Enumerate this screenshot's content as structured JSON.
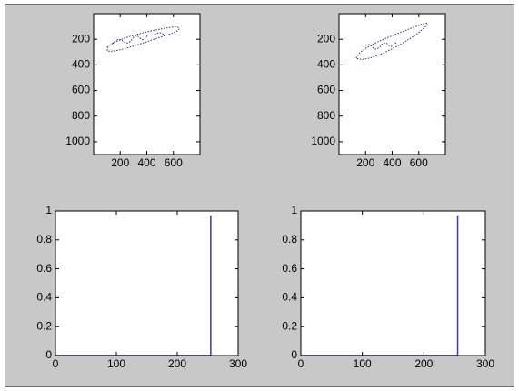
{
  "chart_data": [
    {
      "type": "image",
      "xlim": [
        0,
        800
      ],
      "ylim": [
        0,
        1100
      ],
      "y_reversed": true,
      "xticks": [
        200,
        400,
        600
      ],
      "yticks": [
        200,
        400,
        600,
        800,
        1000
      ]
    },
    {
      "type": "image",
      "xlim": [
        0,
        800
      ],
      "ylim": [
        0,
        1100
      ],
      "y_reversed": true,
      "xticks": [
        200,
        400,
        600
      ],
      "yticks": [
        200,
        400,
        600,
        800,
        1000
      ]
    },
    {
      "type": "line",
      "xlim": [
        0,
        300
      ],
      "ylim": [
        0,
        1
      ],
      "xticks": [
        0,
        100,
        200,
        300
      ],
      "yticks": [
        0,
        0.2,
        0.4,
        0.6,
        0.8,
        1
      ],
      "series": [
        {
          "color": "#3b3bb0",
          "x": [
            0,
            255,
            255
          ],
          "values": [
            0,
            0,
            0.97
          ]
        }
      ]
    },
    {
      "type": "line",
      "xlim": [
        0,
        300
      ],
      "ylim": [
        0,
        1
      ],
      "xticks": [
        0,
        100,
        200,
        300
      ],
      "yticks": [
        0,
        0.2,
        0.4,
        0.6,
        0.8,
        1
      ],
      "series": [
        {
          "color": "#3b3bb0",
          "x": [
            0,
            255,
            255
          ],
          "values": [
            0,
            0,
            0.97
          ]
        }
      ]
    }
  ]
}
